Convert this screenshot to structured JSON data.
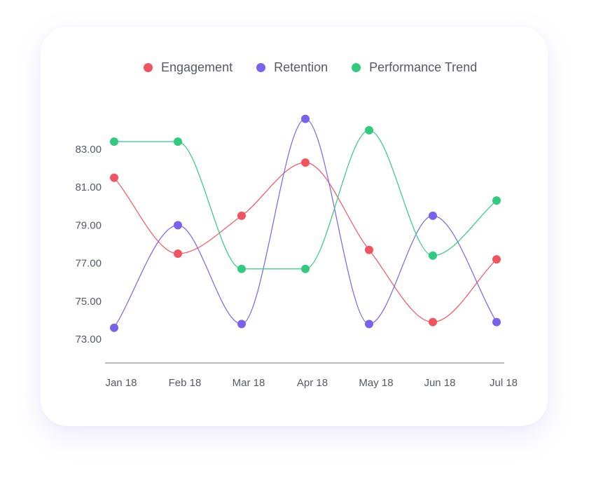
{
  "chart_data": {
    "type": "line",
    "categories": [
      "Jan 18",
      "Feb 18",
      "Mar 18",
      "Apr 18",
      "May 18",
      "Jun 18",
      "Jul 18"
    ],
    "series": [
      {
        "name": "Engagement",
        "color": "#ef5561",
        "values": [
          81.5,
          77.5,
          79.5,
          82.3,
          77.7,
          73.9,
          77.2
        ]
      },
      {
        "name": "Retention",
        "color": "#7864ea",
        "values": [
          73.6,
          79.0,
          73.8,
          84.6,
          73.8,
          79.5,
          73.9
        ]
      },
      {
        "name": "Performance Trend",
        "color": "#33c97f",
        "values": [
          83.4,
          83.4,
          76.7,
          76.7,
          84.0,
          77.4,
          80.3
        ]
      }
    ],
    "y_ticks": [
      "83.00",
      "81.00",
      "79.00",
      "77.00",
      "75.00",
      "73.00"
    ],
    "ylim": [
      73,
      83
    ],
    "grid": false,
    "legend_position": "top",
    "xlabel": "",
    "ylabel": ""
  }
}
